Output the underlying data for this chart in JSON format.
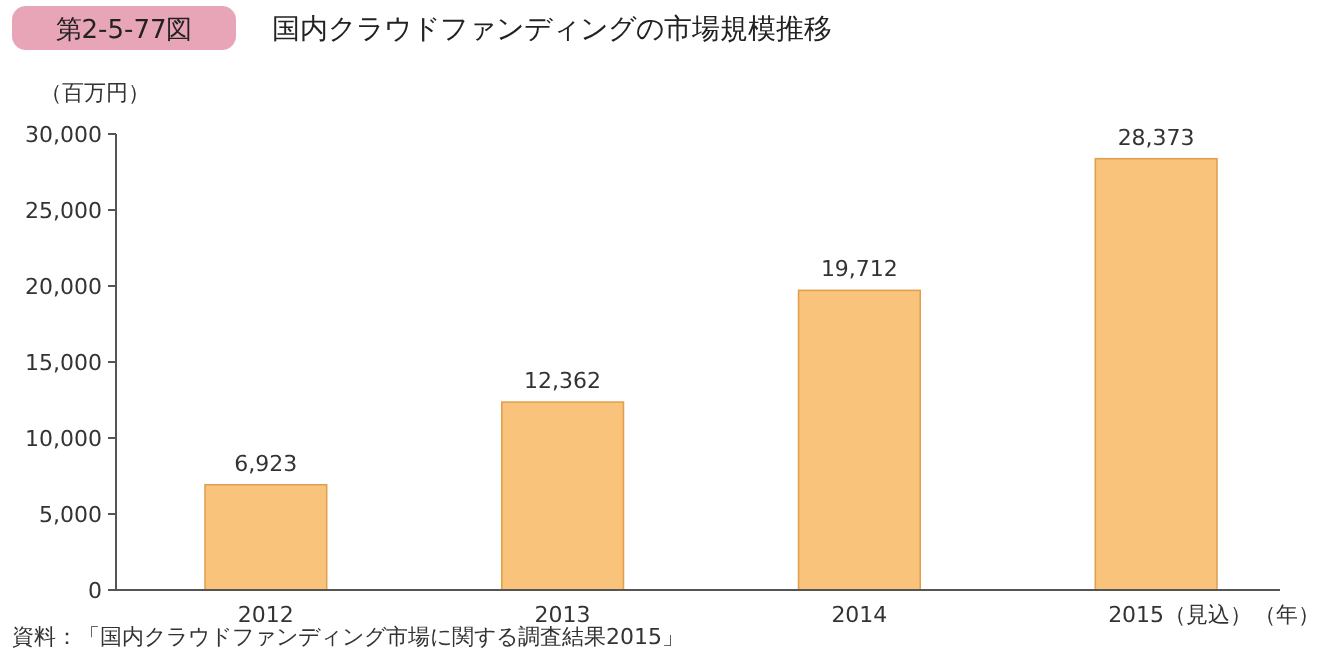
{
  "chart_data": {
    "type": "bar",
    "title": "国内クラウドファンディングの市場規模推移",
    "subtitle": "第2-5-77図",
    "ylabel": "（百万円）",
    "xlabel": "（年）",
    "categories": [
      "2012",
      "2013",
      "2014",
      "2015（見込）"
    ],
    "values": [
      6923,
      12362,
      19712,
      28373
    ],
    "color": "#fac37c",
    "ylim": [
      0,
      30000
    ],
    "yticks": [
      {
        "value": 0,
        "label": "0"
      },
      {
        "value": 5000,
        "label": "5,000"
      },
      {
        "value": 10000,
        "label": "10,000"
      },
      {
        "value": 15000,
        "label": "15,000"
      },
      {
        "value": 20000,
        "label": "20,000"
      },
      {
        "value": 25000,
        "label": "25,000"
      },
      {
        "value": 30000,
        "label": "30,000"
      }
    ],
    "value_labels": [
      "6,923",
      "12,362",
      "19,712",
      "28,373"
    ],
    "annotations": [
      "資料：「国内クラウドファンディング市場に関する調査結果2015」"
    ]
  }
}
